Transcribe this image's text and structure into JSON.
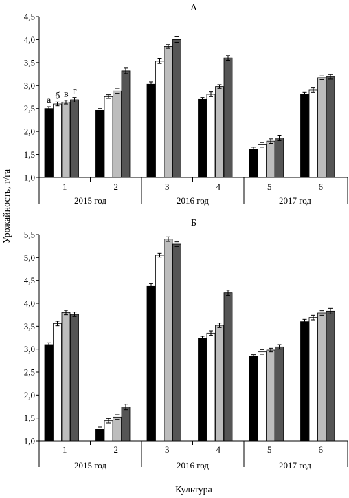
{
  "figure": {
    "ylabel": "Урожайность, т/га",
    "xlabel": "Культура"
  },
  "chart_data": [
    {
      "type": "bar",
      "title": "А",
      "categories": [
        "1",
        "2",
        "3",
        "4",
        "5",
        "6"
      ],
      "groups": [
        "2015 год",
        "2016 год",
        "2017 год"
      ],
      "ylim": [
        1.0,
        4.5
      ],
      "yticks": [
        "1,0",
        "1,5",
        "2,0",
        "2,5",
        "3,0",
        "3,5",
        "4,0",
        "4,5"
      ],
      "bar_labels": [
        "а",
        "б",
        "в",
        "г"
      ],
      "series": [
        {
          "name": "а",
          "color": "#000000",
          "values": [
            2.5,
            2.46,
            3.03,
            2.7,
            1.62,
            2.81
          ],
          "errors": [
            0.04,
            0.04,
            0.05,
            0.04,
            0.04,
            0.04
          ]
        },
        {
          "name": "б",
          "color": "#ffffff",
          "values": [
            2.6,
            2.76,
            3.53,
            2.81,
            1.71,
            2.9
          ],
          "errors": [
            0.04,
            0.04,
            0.05,
            0.05,
            0.05,
            0.05
          ]
        },
        {
          "name": "в",
          "color": "#bdbdbd",
          "values": [
            2.64,
            2.88,
            3.85,
            2.98,
            1.79,
            3.17
          ],
          "errors": [
            0.04,
            0.05,
            0.04,
            0.04,
            0.05,
            0.04
          ]
        },
        {
          "name": "г",
          "color": "#555555",
          "values": [
            2.69,
            3.32,
            4.0,
            3.6,
            1.86,
            3.19
          ],
          "errors": [
            0.05,
            0.06,
            0.06,
            0.05,
            0.06,
            0.05
          ]
        }
      ]
    },
    {
      "type": "bar",
      "title": "Б",
      "categories": [
        "1",
        "2",
        "3",
        "4",
        "5",
        "6"
      ],
      "groups": [
        "2015 год",
        "2016 год",
        "2017 год"
      ],
      "ylim": [
        1.0,
        5.5
      ],
      "yticks": [
        "1,0",
        "1,5",
        "2,0",
        "2,5",
        "3,0",
        "3,5",
        "4,0",
        "4,5",
        "5,0",
        "5,5"
      ],
      "series": [
        {
          "name": "а",
          "color": "#000000",
          "values": [
            3.1,
            1.26,
            4.37,
            3.24,
            2.84,
            3.6
          ],
          "errors": [
            0.04,
            0.04,
            0.06,
            0.04,
            0.04,
            0.05
          ]
        },
        {
          "name": "б",
          "color": "#ffffff",
          "values": [
            3.56,
            1.44,
            5.05,
            3.35,
            2.94,
            3.69
          ],
          "errors": [
            0.05,
            0.05,
            0.04,
            0.05,
            0.05,
            0.05
          ]
        },
        {
          "name": "в",
          "color": "#bdbdbd",
          "values": [
            3.8,
            1.52,
            5.4,
            3.52,
            2.98,
            3.79
          ],
          "errors": [
            0.05,
            0.05,
            0.05,
            0.05,
            0.04,
            0.05
          ]
        },
        {
          "name": "г",
          "color": "#555555",
          "values": [
            3.76,
            1.74,
            5.29,
            4.23,
            3.05,
            3.83
          ],
          "errors": [
            0.05,
            0.06,
            0.05,
            0.06,
            0.05,
            0.06
          ]
        }
      ]
    }
  ]
}
